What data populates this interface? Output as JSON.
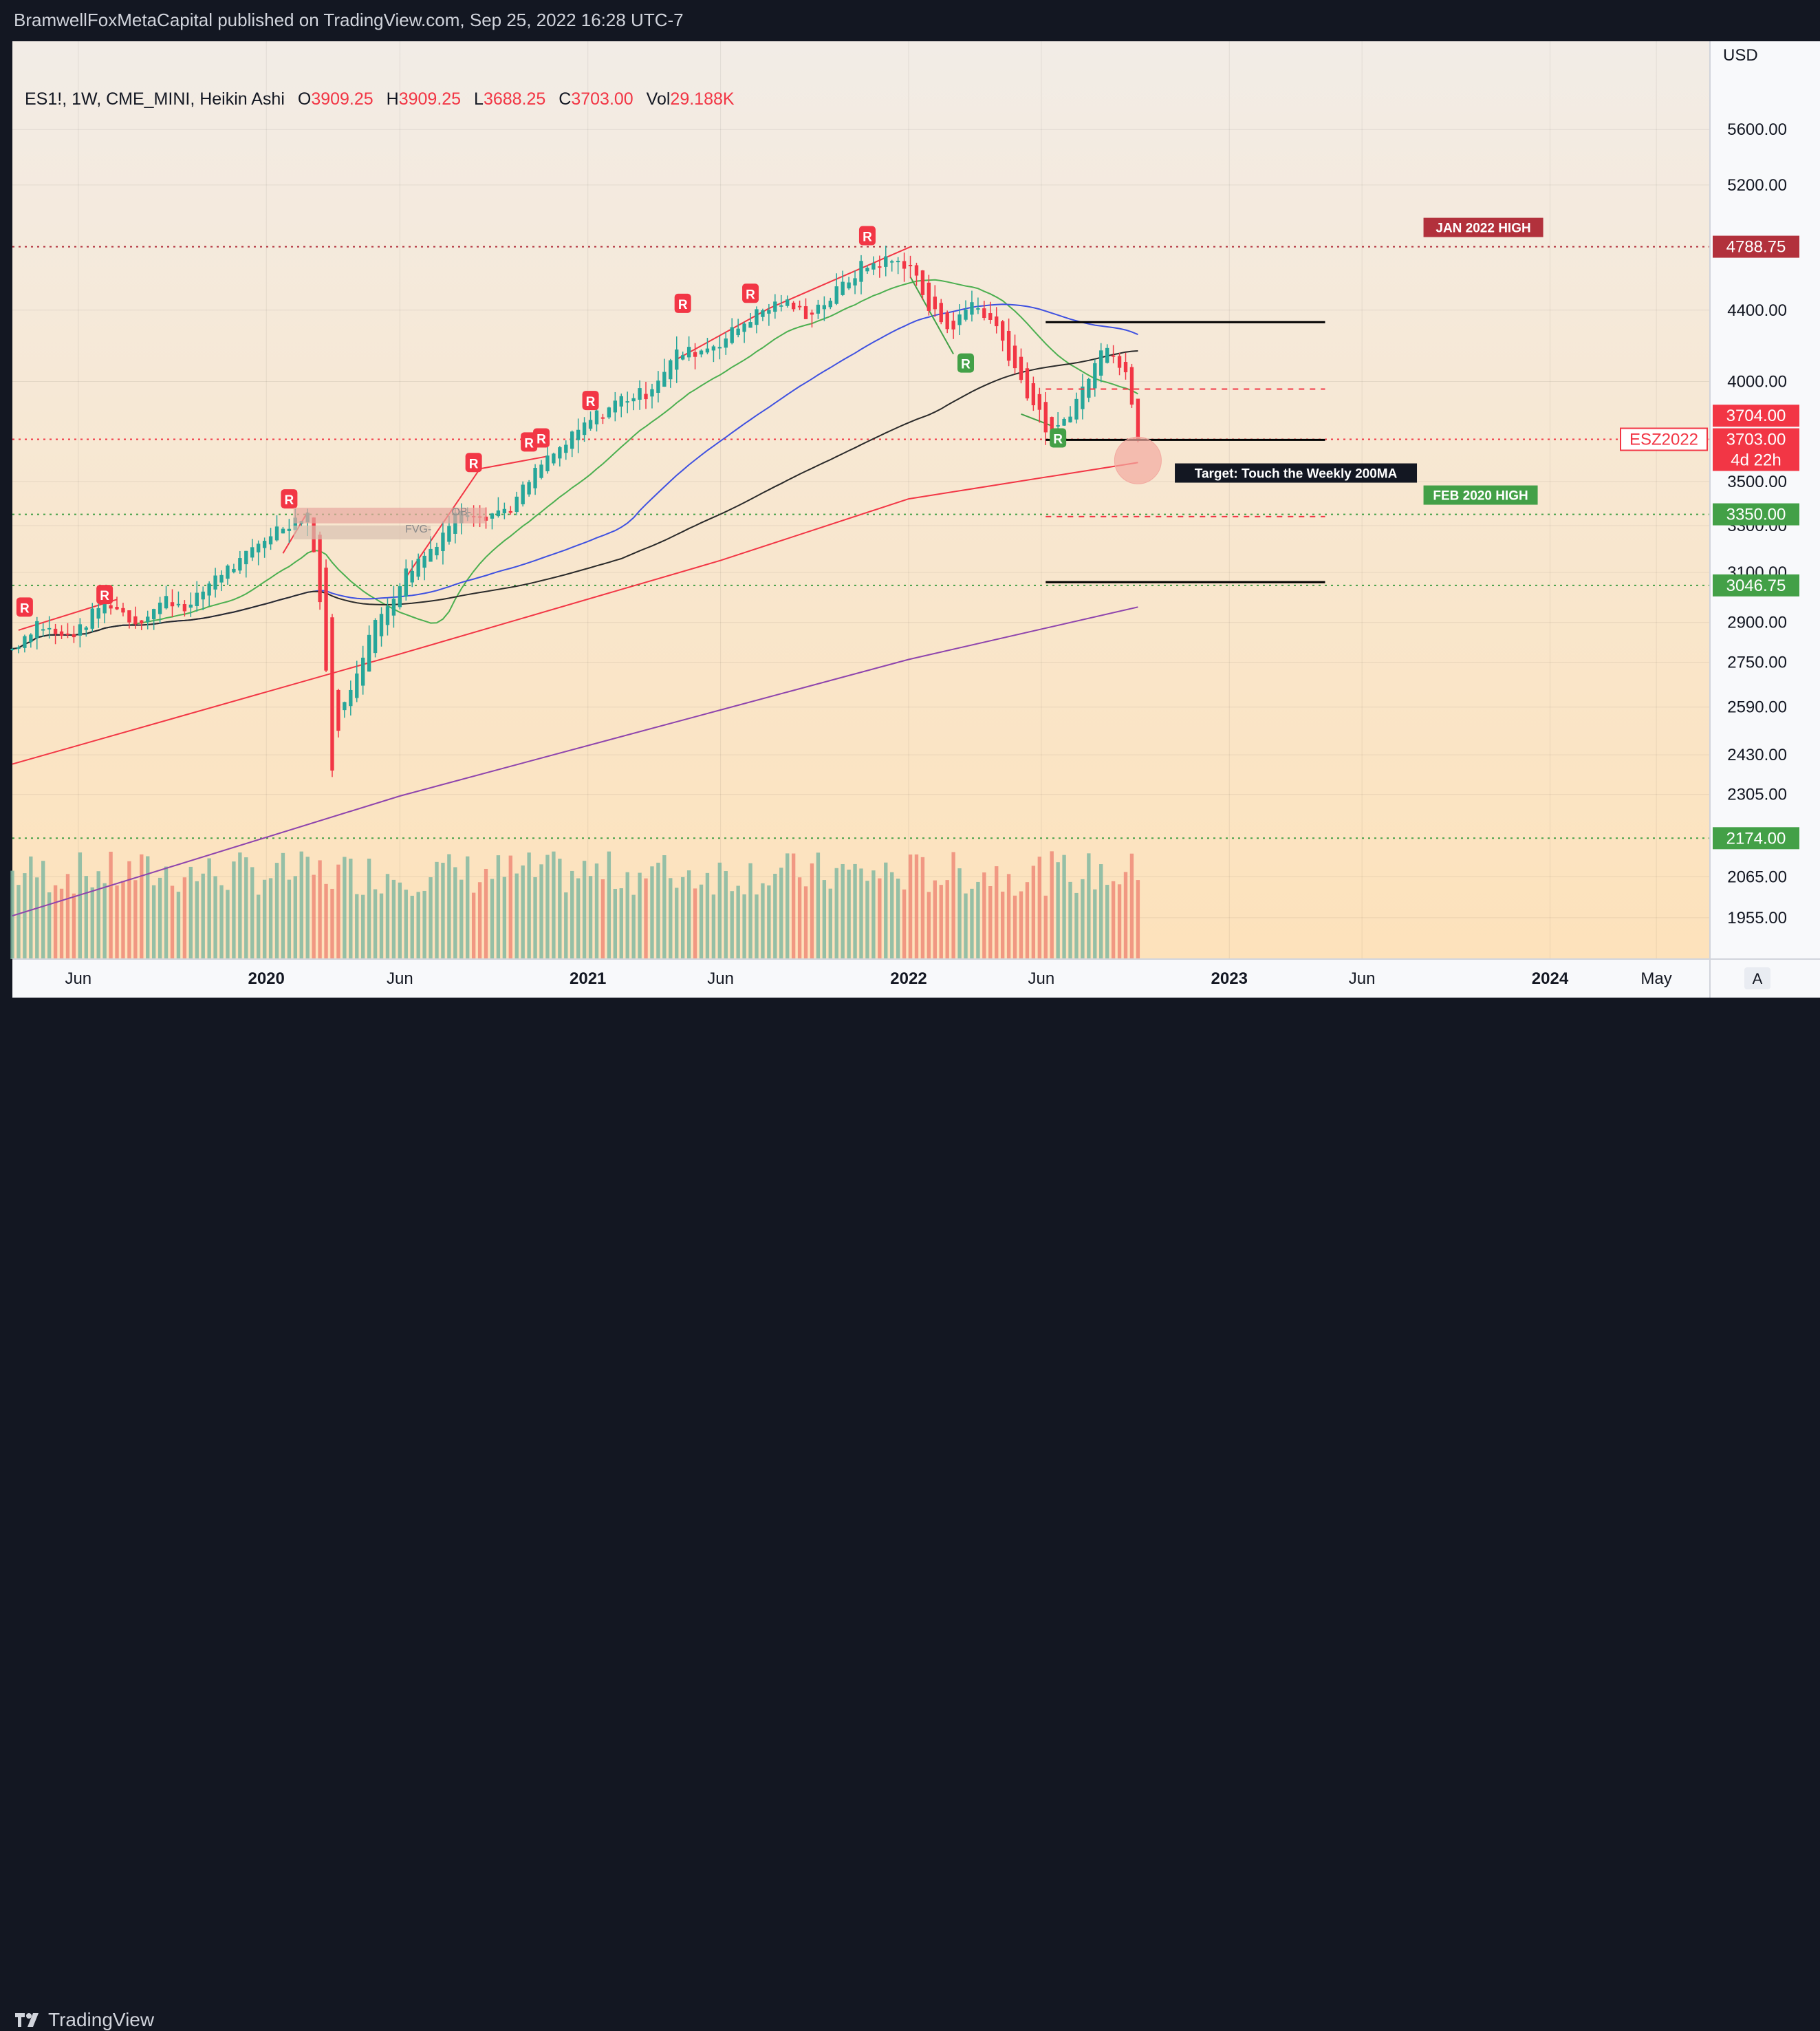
{
  "header": {
    "publisher_line": "BramwellFoxMetaCapital published on TradingView.com, Sep 25, 2022 16:28 UTC-7"
  },
  "legend": {
    "symbol": "ES1!, 1W, CME_MINI, Heikin Ashi",
    "o_label": "O",
    "o_value": "3909.25",
    "h_label": "H",
    "h_value": "3909.25",
    "l_label": "L",
    "l_value": "3688.25",
    "c_label": "C",
    "c_value": "3703.00",
    "vol_label": "Vol",
    "vol_value": "29.188K"
  },
  "footer": {
    "brand": "TradingView",
    "auto_button": "A"
  },
  "colors": {
    "up": "#26a69a",
    "down": "#f23645",
    "bg_top": "#f2ece6",
    "bg_bottom": "#fde0b8",
    "ma20": "#4caf50",
    "ma50": "#3f51e0",
    "ma100": "#2a2a2a",
    "ma200": "#f23645",
    "ma_long": "#8e44ad"
  },
  "chart_data": {
    "type": "candlestick",
    "currency": "USD",
    "y_scale": "log",
    "ylim": [
      1850,
      6300
    ],
    "y_ticks": [
      "5600.00",
      "5200.00",
      "4400.00",
      "4000.00",
      "3500.00",
      "3300.00",
      "3100.00",
      "2900.00",
      "2750.00",
      "2590.00",
      "2430.00",
      "2305.00",
      "2065.00",
      "1955.00"
    ],
    "y_tick_values": [
      5600,
      5200,
      4400,
      4000,
      3500,
      3300,
      3100,
      2900,
      2750,
      2590,
      2430,
      2305,
      2065,
      1955
    ],
    "x_labels": [
      "Jun",
      "2020",
      "Jun",
      "2021",
      "Jun",
      "2022",
      "Jun",
      "2023",
      "Jun",
      "2024",
      "May"
    ],
    "x_label_dates": [
      "2019-06-01",
      "2020-01-01",
      "2020-06-01",
      "2021-01-01",
      "2021-06-01",
      "2022-01-01",
      "2022-06-01",
      "2023-01-01",
      "2023-06-01",
      "2024-01-01",
      "2024-05-01"
    ],
    "x_start": "2019-03-18",
    "x_end": "2024-07-01",
    "price_labels": [
      {
        "text": "4788.75",
        "value": 4788.75,
        "color": "#b2313c"
      },
      {
        "text": "3704.00",
        "value": 3704.0,
        "color": "#f23645"
      },
      {
        "text": "3703.00",
        "value": 3703.0,
        "color": "#f23645"
      },
      {
        "text": "4d 22h",
        "value": 3703.0,
        "color": "#f23645"
      },
      {
        "text": "3350.00",
        "value": 3350.0,
        "color": "#43a047"
      },
      {
        "text": "3046.75",
        "value": 3046.75,
        "color": "#43a047"
      },
      {
        "text": "2174.00",
        "value": 2174.0,
        "color": "#43a047"
      }
    ],
    "annotations": {
      "jan2022_high": "JAN 2022 HIGH",
      "feb2020_high": "FEB 2020 HIGH",
      "target": "Target: Touch the Weekly 200MA",
      "contract": "ESZ2022",
      "ob": "OB-",
      "fvg": "FVG-",
      "r": "R"
    },
    "horizontal_levels": [
      {
        "value": 4788.75,
        "style": "dotted",
        "color": "#b2313c"
      },
      {
        "value": 3703.0,
        "style": "dotted",
        "color": "#f23645"
      },
      {
        "value": 3350.0,
        "style": "dotted",
        "color": "#43a047"
      },
      {
        "value": 3046.75,
        "style": "dotted",
        "color": "#43a047"
      },
      {
        "value": 2174.0,
        "style": "dotted",
        "color": "#43a047"
      }
    ],
    "series_weekly_closes_approx": [
      [
        "2019-03-18",
        2800
      ],
      [
        "2019-04-15",
        2900
      ],
      [
        "2019-05-13",
        2840
      ],
      [
        "2019-06-03",
        2870
      ],
      [
        "2019-07-01",
        2990
      ],
      [
        "2019-08-05",
        2900
      ],
      [
        "2019-09-09",
        2990
      ],
      [
        "2019-10-07",
        2960
      ],
      [
        "2019-11-04",
        3090
      ],
      [
        "2019-12-02",
        3140
      ],
      [
        "2020-01-06",
        3270
      ],
      [
        "2020-02-17",
        3360
      ],
      [
        "2020-03-02",
        3000
      ],
      [
        "2020-03-16",
        2400
      ],
      [
        "2020-03-30",
        2600
      ],
      [
        "2020-04-27",
        2850
      ],
      [
        "2020-06-08",
        3100
      ],
      [
        "2020-07-06",
        3200
      ],
      [
        "2020-08-10",
        3380
      ],
      [
        "2020-09-07",
        3350
      ],
      [
        "2020-10-05",
        3380
      ],
      [
        "2020-11-09",
        3580
      ],
      [
        "2020-12-07",
        3680
      ],
      [
        "2021-01-04",
        3800
      ],
      [
        "2021-02-08",
        3910
      ],
      [
        "2021-03-08",
        3940
      ],
      [
        "2021-04-12",
        4150
      ],
      [
        "2021-05-10",
        4170
      ],
      [
        "2021-06-07",
        4240
      ],
      [
        "2021-07-05",
        4360
      ],
      [
        "2021-08-09",
        4450
      ],
      [
        "2021-09-06",
        4380
      ],
      [
        "2021-10-04",
        4470
      ],
      [
        "2021-11-08",
        4660
      ],
      [
        "2021-12-06",
        4700
      ],
      [
        "2022-01-03",
        4680
      ],
      [
        "2022-01-24",
        4400
      ],
      [
        "2022-02-21",
        4300
      ],
      [
        "2022-03-14",
        4450
      ],
      [
        "2022-04-11",
        4300
      ],
      [
        "2022-05-09",
        4000
      ],
      [
        "2022-06-13",
        3700
      ],
      [
        "2022-07-11",
        3900
      ],
      [
        "2022-08-15",
        4220
      ],
      [
        "2022-09-05",
        4050
      ],
      [
        "2022-09-19",
        3703
      ]
    ]
  }
}
